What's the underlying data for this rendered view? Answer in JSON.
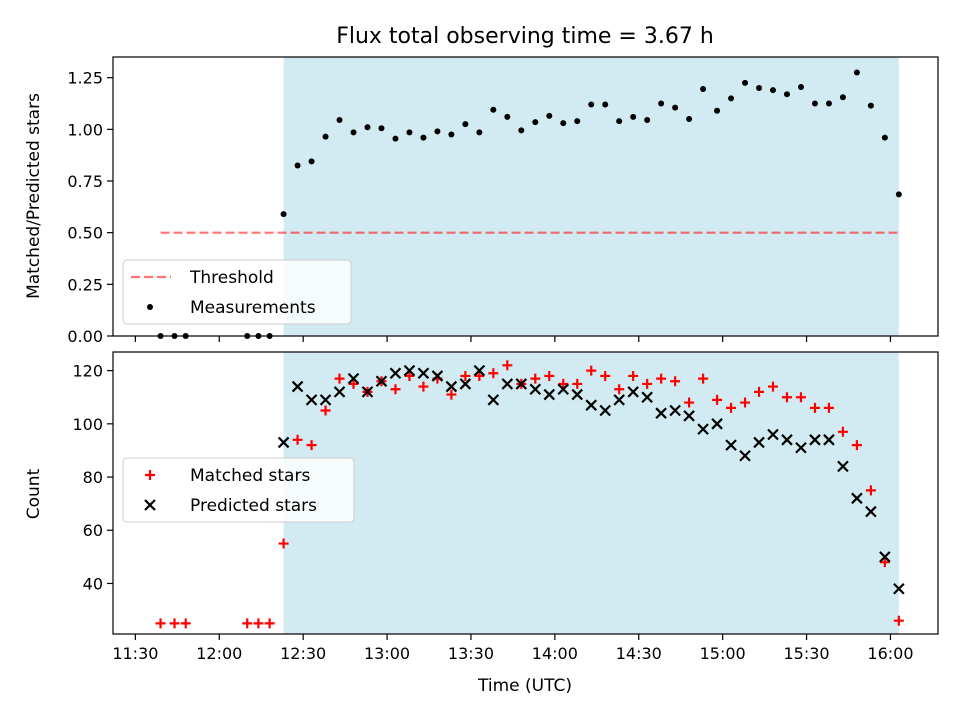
{
  "figure": {
    "title": "Flux total observing time = 3.67 h"
  },
  "colors": {
    "shade": "#add8e6",
    "threshold": "#ff0000",
    "measurement": "#000000",
    "matched": "#ff0000",
    "predicted": "#000000"
  },
  "chart_data": [
    {
      "type": "scatter",
      "ylabel": "Matched/Predicted stars",
      "xlim": [
        -8,
        287
      ],
      "ylim": [
        0,
        1.35
      ],
      "y_ticks": [
        0.0,
        0.25,
        0.5,
        0.75,
        1.0,
        1.25
      ],
      "y_tick_labels": [
        "0.00",
        "0.25",
        "0.50",
        "0.75",
        "1.00",
        "1.25"
      ],
      "shaded_interval": [
        53,
        273
      ],
      "threshold": {
        "y": 0.5,
        "x": [
          9,
          273
        ]
      },
      "legend": {
        "position": "lower-left",
        "entries": [
          "Threshold",
          "Measurements"
        ]
      },
      "series": [
        {
          "name": "Measurements",
          "x": [
            9,
            14,
            18,
            40,
            44,
            48,
            53,
            58,
            63,
            68,
            73,
            78,
            83,
            88,
            93,
            98,
            103,
            108,
            113,
            118,
            123,
            128,
            133,
            138,
            143,
            148,
            153,
            158,
            163,
            168,
            173,
            178,
            183,
            188,
            193,
            198,
            203,
            208,
            213,
            218,
            223,
            228,
            233,
            238,
            243,
            248,
            253,
            258,
            263,
            268,
            273
          ],
          "y": [
            0.0,
            0.0,
            0.0,
            0.0,
            0.0,
            0.0,
            0.59,
            0.825,
            0.845,
            0.965,
            1.045,
            0.985,
            1.01,
            1.005,
            0.955,
            0.985,
            0.96,
            0.99,
            0.975,
            1.025,
            0.985,
            1.095,
            1.06,
            0.995,
            1.035,
            1.065,
            1.03,
            1.04,
            1.12,
            1.12,
            1.04,
            1.06,
            1.045,
            1.125,
            1.105,
            1.05,
            1.195,
            1.09,
            1.15,
            1.225,
            1.2,
            1.19,
            1.17,
            1.205,
            1.125,
            1.125,
            1.155,
            1.275,
            1.115,
            0.96,
            0.685
          ]
        }
      ]
    },
    {
      "type": "scatter",
      "ylabel": "Count",
      "xlabel": "Time (UTC)",
      "xlim": [
        -8,
        287
      ],
      "ylim": [
        21,
        127
      ],
      "y_ticks": [
        40,
        60,
        80,
        100,
        120
      ],
      "y_tick_labels": [
        "40",
        "60",
        "80",
        "100",
        "120"
      ],
      "x_ticks": [
        0,
        30,
        60,
        90,
        120,
        150,
        180,
        210,
        240,
        270
      ],
      "x_tick_labels": [
        "11:30",
        "12:00",
        "12:30",
        "13:00",
        "13:30",
        "14:00",
        "14:30",
        "15:00",
        "15:30",
        "16:00"
      ],
      "shaded_interval": [
        53,
        273
      ],
      "legend": {
        "position": "center-left",
        "entries": [
          "Matched stars",
          "Predicted stars"
        ]
      },
      "series": [
        {
          "name": "Matched stars",
          "marker": "plus",
          "x": [
            9,
            14,
            18,
            40,
            44,
            48,
            53,
            58,
            63,
            68,
            73,
            78,
            83,
            88,
            93,
            98,
            103,
            108,
            113,
            118,
            123,
            128,
            133,
            138,
            143,
            148,
            153,
            158,
            163,
            168,
            173,
            178,
            183,
            188,
            193,
            198,
            203,
            208,
            213,
            218,
            223,
            228,
            233,
            238,
            243,
            248,
            253,
            258,
            263,
            268,
            273
          ],
          "y": [
            25,
            25,
            25,
            25,
            25,
            25,
            55,
            94,
            92,
            105,
            117,
            115,
            112,
            116,
            113,
            118,
            114,
            117,
            111,
            118,
            118,
            119,
            122,
            115,
            117,
            118,
            115,
            115,
            120,
            118,
            113,
            118,
            115,
            117,
            116,
            108,
            117,
            109,
            106,
            108,
            112,
            114,
            110,
            110,
            106,
            106,
            97,
            92,
            75,
            48,
            26
          ]
        },
        {
          "name": "Predicted stars",
          "marker": "x",
          "x": [
            53,
            58,
            63,
            68,
            73,
            78,
            83,
            88,
            93,
            98,
            103,
            108,
            113,
            118,
            123,
            128,
            133,
            138,
            143,
            148,
            153,
            158,
            163,
            168,
            173,
            178,
            183,
            188,
            193,
            198,
            203,
            208,
            213,
            218,
            223,
            228,
            233,
            238,
            243,
            248,
            253,
            258,
            263,
            268,
            273
          ],
          "y": [
            93,
            114,
            109,
            109,
            112,
            117,
            112,
            116,
            119,
            120,
            119,
            118,
            114,
            115,
            120,
            109,
            115,
            115,
            113,
            111,
            113,
            111,
            107,
            105,
            109,
            112,
            110,
            104,
            105,
            103,
            98,
            100,
            92,
            88,
            93,
            96,
            94,
            91,
            94,
            94,
            84,
            72,
            67,
            50,
            38
          ]
        }
      ]
    }
  ]
}
